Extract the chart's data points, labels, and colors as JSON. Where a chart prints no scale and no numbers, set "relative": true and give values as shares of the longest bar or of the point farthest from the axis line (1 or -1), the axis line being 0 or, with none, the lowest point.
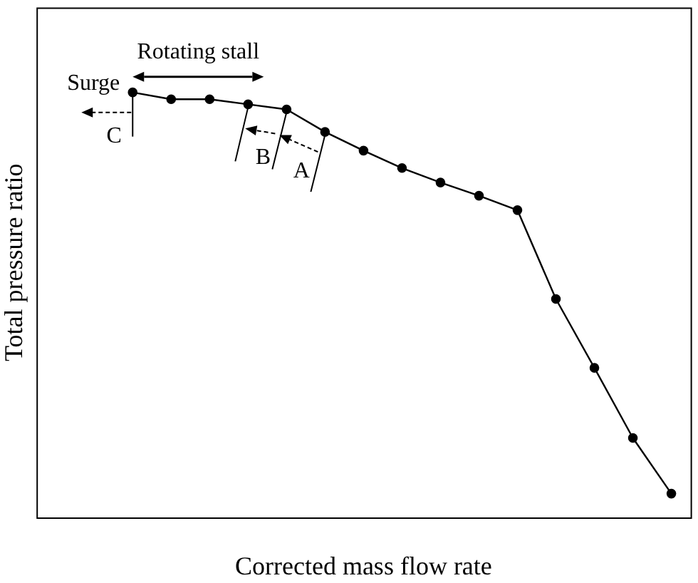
{
  "chart_data": {
    "type": "line",
    "xlabel": "Corrected mass flow rate",
    "ylabel": "Total pressure ratio",
    "relative": true,
    "marker": "circle",
    "line_style": "solid",
    "categories": [
      null,
      null,
      null,
      null,
      null,
      null,
      null,
      null,
      null,
      null,
      null,
      null,
      null,
      null,
      null
    ],
    "annotations": [
      "Rotating stall",
      "Surge",
      "C",
      "B",
      "A"
    ],
    "series": [
      {
        "color": "#000000",
        "values": [
          1.0,
          0.984,
          0.984,
          0.972,
          0.96,
          0.907,
          0.863,
          0.822,
          0.788,
          0.757,
          0.723,
          0.514,
          0.352,
          0.187,
          0.056
        ]
      }
    ]
  }
}
